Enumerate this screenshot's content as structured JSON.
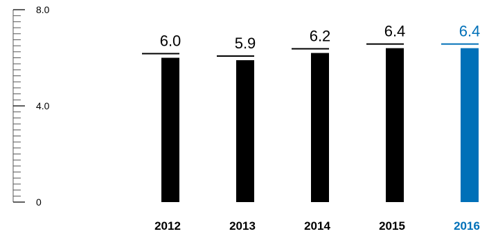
{
  "chart_data": {
    "type": "bar",
    "categories": [
      "2012",
      "2013",
      "2014",
      "2015",
      "2016"
    ],
    "values": [
      6.0,
      5.9,
      6.2,
      6.4,
      6.4
    ],
    "value_labels": [
      "6.0",
      "5.9",
      "6.2",
      "6.4",
      "6.4"
    ],
    "ylim": [
      0,
      8
    ],
    "y_ticks": [
      {
        "value": 0,
        "label": "0"
      },
      {
        "value": 4,
        "label": "4.0"
      },
      {
        "value": 8,
        "label": "8.0"
      }
    ],
    "minor_tick_step": 0.25,
    "grid": false,
    "highlight_index": 4,
    "colors": {
      "default": "#000000",
      "highlight": "#0070b8"
    }
  }
}
